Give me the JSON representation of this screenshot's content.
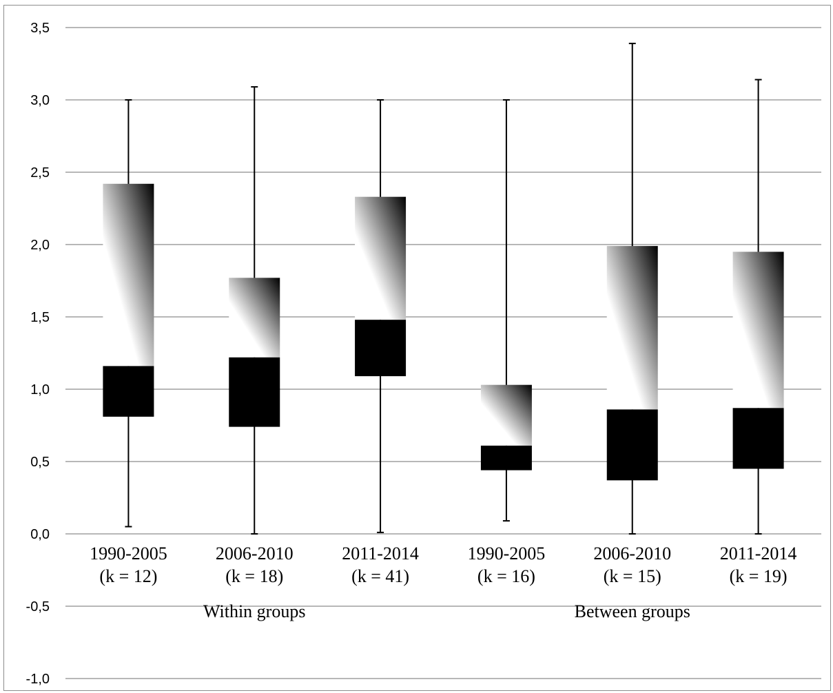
{
  "chart_data": {
    "type": "boxplot",
    "title": "",
    "xlabel": "",
    "ylabel": "",
    "ylim": [
      -1.0,
      3.5
    ],
    "ytick_step": 0.5,
    "ytick_labels": [
      "-1,0",
      "-0,5",
      "0,0",
      "0,5",
      "1,0",
      "1,5",
      "2,0",
      "2,5",
      "3,0",
      "3,5"
    ],
    "grid": true,
    "categories": [
      {
        "period": "1990-2005",
        "k": "(k = 12)",
        "group": "Within groups",
        "min": 0.05,
        "q1": 0.81,
        "median": 1.16,
        "q3": 2.42,
        "max": 3.0
      },
      {
        "period": "2006-2010",
        "k": "(k = 18)",
        "group": "Within groups",
        "min": 0.0,
        "q1": 0.74,
        "median": 1.22,
        "q3": 1.77,
        "max": 3.09
      },
      {
        "period": "2011-2014",
        "k": "(k = 41)",
        "group": "Within groups",
        "min": 0.01,
        "q1": 1.09,
        "median": 1.48,
        "q3": 2.33,
        "max": 3.0
      },
      {
        "period": "1990-2005",
        "k": "(k = 16)",
        "group": "Between groups",
        "min": 0.09,
        "q1": 0.44,
        "median": 0.61,
        "q3": 1.03,
        "max": 3.0
      },
      {
        "period": "2006-2010",
        "k": "(k = 15)",
        "group": "Between groups",
        "min": 0.0,
        "q1": 0.37,
        "median": 0.86,
        "q3": 1.99,
        "max": 3.39
      },
      {
        "period": "2011-2014",
        "k": "(k = 19)",
        "group": "Between groups",
        "min": 0.0,
        "q1": 0.45,
        "median": 0.87,
        "q3": 1.95,
        "max": 3.14
      }
    ],
    "group_labels": [
      "Within groups",
      "Between groups"
    ],
    "colors": {
      "lower_box": "#000000",
      "upper_box_gradient": [
        "#ffffff",
        "#000000"
      ],
      "grid": "#8c8c8c",
      "whisker": "#000000"
    }
  }
}
